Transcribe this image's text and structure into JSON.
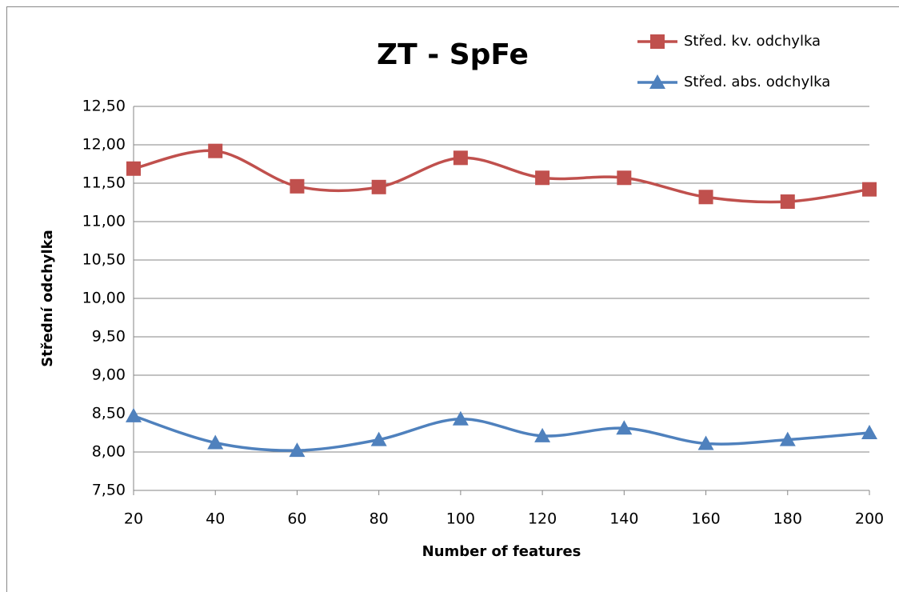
{
  "chart_data": {
    "type": "line",
    "title": "ZT - SpFe",
    "x_label": "Number of features",
    "y_label": "Střední odchylka",
    "x": [
      20,
      40,
      60,
      80,
      100,
      120,
      140,
      160,
      180,
      200
    ],
    "xlim": [
      20,
      200
    ],
    "xticks": [
      20,
      40,
      60,
      80,
      100,
      120,
      140,
      160,
      180,
      200
    ],
    "ylim": [
      7.5,
      12.5
    ],
    "yticks": [
      {
        "value": 7.5,
        "label": "7,50"
      },
      {
        "value": 8,
        "label": "8,00"
      },
      {
        "value": 8.5,
        "label": "8,50"
      },
      {
        "value": 9,
        "label": "9,00"
      },
      {
        "value": 9.5,
        "label": "9,50"
      },
      {
        "value": 10,
        "label": "10,00"
      },
      {
        "value": 10.5,
        "label": "10,50"
      },
      {
        "value": 11,
        "label": "11,00"
      },
      {
        "value": 11.5,
        "label": "11,50"
      },
      {
        "value": 12,
        "label": "12,00"
      },
      {
        "value": 12.5,
        "label": "12,50"
      }
    ],
    "grid": true,
    "smooth": true,
    "legend": "top-right",
    "series": [
      {
        "name": "Střed. kv. odchylka",
        "color": "#c0504d",
        "marker": "square",
        "values": [
          11.69,
          11.92,
          11.46,
          11.45,
          11.83,
          11.57,
          11.57,
          11.32,
          11.26,
          11.42
        ]
      },
      {
        "name": "Střed. abs. odchylka",
        "color": "#4f81bd",
        "marker": "triangle",
        "values": [
          8.47,
          8.12,
          8.02,
          8.16,
          8.43,
          8.21,
          8.31,
          8.11,
          8.16,
          8.25
        ]
      }
    ]
  }
}
